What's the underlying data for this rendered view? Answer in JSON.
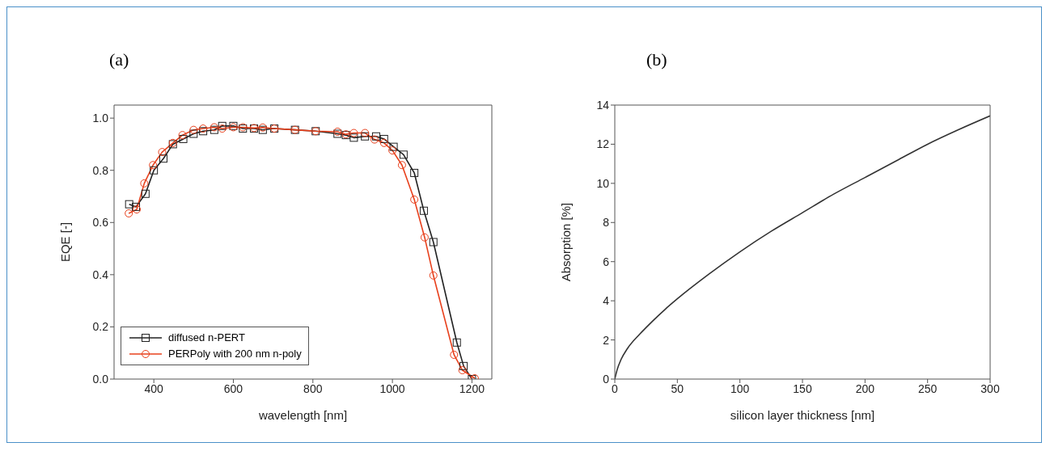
{
  "chart_data": [
    {
      "type": "line",
      "title": "(a)",
      "xlabel": "wavelength [nm]",
      "ylabel": "EQE [-]",
      "xlim": [
        300,
        1250
      ],
      "xticks": [
        400,
        600,
        800,
        1000,
        1200
      ],
      "ylim": [
        0,
        1.05
      ],
      "yticks": [
        {
          "value": 0,
          "label": "0.0"
        },
        {
          "value": 0.2,
          "label": "0.2"
        },
        {
          "value": 0.4,
          "label": "0.4"
        },
        {
          "value": 0.6,
          "label": "0.6"
        },
        {
          "value": 0.8,
          "label": "0.8"
        },
        {
          "value": 1,
          "label": "1.0"
        }
      ],
      "legend": "bottom left",
      "line_style": "solid",
      "series": [
        {
          "name": "diffused n-PERT",
          "color": "#222222",
          "marker": "square",
          "x": [
            338,
            355,
            379,
            400,
            424,
            448,
            474,
            500,
            524,
            552,
            572,
            600,
            624,
            652,
            674,
            703,
            755,
            807,
            862,
            883,
            903,
            931,
            959,
            979,
            1003,
            1028,
            1055,
            1079,
            1103,
            1162,
            1179,
            1200
          ],
          "values": [
            0.67,
            0.66,
            0.71,
            0.8,
            0.845,
            0.9,
            0.92,
            0.94,
            0.95,
            0.955,
            0.97,
            0.97,
            0.96,
            0.96,
            0.955,
            0.96,
            0.955,
            0.95,
            0.94,
            0.935,
            0.925,
            0.93,
            0.93,
            0.92,
            0.89,
            0.86,
            0.79,
            0.645,
            0.525,
            0.14,
            0.05,
            0
          ]
        },
        {
          "name": "PERPoly with 200 nm n-poly",
          "color": "#e8401c",
          "marker": "circle",
          "x": [
            337,
            357,
            376,
            398,
            421,
            448,
            472,
            500,
            524,
            552,
            572,
            600,
            624,
            652,
            674,
            703,
            755,
            807,
            862,
            883,
            903,
            931,
            955,
            979,
            1000,
            1024,
            1055,
            1081,
            1103,
            1155,
            1176,
            1207
          ],
          "values": [
            0.635,
            0.65,
            0.75,
            0.82,
            0.87,
            0.905,
            0.935,
            0.955,
            0.96,
            0.965,
            0.96,
            0.965,
            0.965,
            0.962,
            0.964,
            0.96,
            0.955,
            0.95,
            0.948,
            0.938,
            0.943,
            0.943,
            0.918,
            0.905,
            0.876,
            0.82,
            0.688,
            0.543,
            0.397,
            0.093,
            0.034,
            0.003
          ]
        }
      ]
    },
    {
      "type": "line",
      "title": "(b)",
      "xlabel": "silicon layer thickness [nm]",
      "ylabel": "Absorption [%]",
      "xlim": [
        0,
        300
      ],
      "xticks": [
        0,
        50,
        100,
        150,
        200,
        250,
        300
      ],
      "ylim": [
        0,
        14
      ],
      "yticks": [
        0,
        2,
        4,
        6,
        8,
        10,
        12,
        14
      ],
      "line_style": "solid",
      "marker": "none",
      "series": [
        {
          "color": "#333333",
          "x": [
            0,
            2,
            5,
            10,
            20,
            30,
            40,
            50,
            75,
            100,
            125,
            150,
            175,
            200,
            225,
            250,
            275,
            300
          ],
          "values": [
            0,
            0.5,
            1.0,
            1.55,
            2.3,
            2.95,
            3.55,
            4.1,
            5.35,
            6.5,
            7.55,
            8.5,
            9.45,
            10.3,
            11.15,
            12.0,
            12.75,
            13.45
          ]
        }
      ]
    }
  ]
}
